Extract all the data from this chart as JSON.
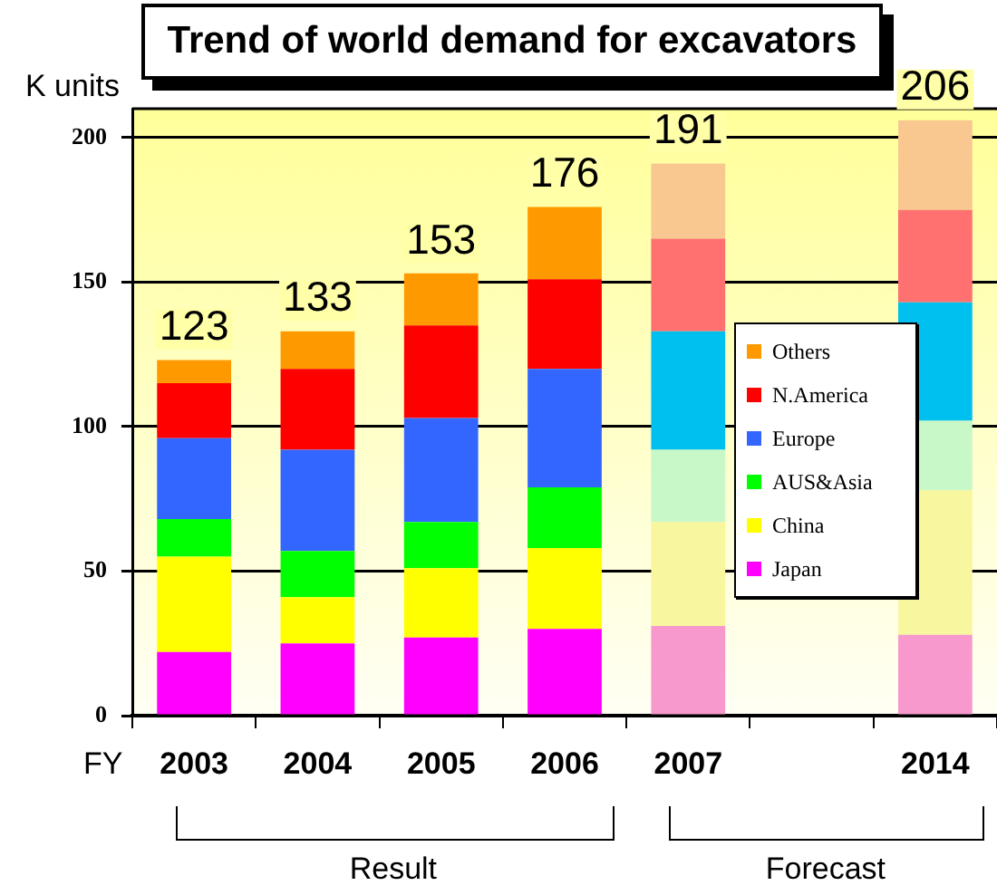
{
  "chart_data": {
    "type": "bar",
    "stacked": true,
    "title": "Trend of world demand for excavators",
    "ylabel": "K units",
    "xlabel": "FY",
    "categories": [
      "2003",
      "2004",
      "2005",
      "2006",
      "2007",
      null,
      "2014"
    ],
    "series": [
      {
        "name": "Japan",
        "color": "#ff00ff",
        "colors": [
          "#ff00ff",
          "#ff00ff",
          "#ff00ff",
          "#ff00ff",
          "#f799cc",
          "#f799cc",
          "#f799cc"
        ],
        "values": [
          22,
          25,
          27,
          30,
          31,
          null,
          28
        ]
      },
      {
        "name": "China",
        "color": "#ffff00",
        "colors": [
          "#ffff00",
          "#ffff00",
          "#ffff00",
          "#ffff00",
          "#f9f6a0",
          "#f9f6a0",
          "#f9f6a0"
        ],
        "values": [
          33,
          16,
          24,
          28,
          36,
          null,
          50
        ]
      },
      {
        "name": "AUS&Asia",
        "color": "#00ff00",
        "colors": [
          "#00ff00",
          "#00ff00",
          "#00ff00",
          "#00ff00",
          "#c8f7c8",
          "#c8f7c8",
          "#c8f7c8"
        ],
        "values": [
          13,
          16,
          16,
          21,
          25,
          null,
          24
        ]
      },
      {
        "name": "Europe",
        "color": "#3366ff",
        "colors": [
          "#3366ff",
          "#3366ff",
          "#3366ff",
          "#3366ff",
          "#00c0f0",
          "#00c0f0",
          "#00c0f0"
        ],
        "values": [
          28,
          35,
          36,
          41,
          41,
          null,
          41
        ]
      },
      {
        "name": "N.America",
        "color": "#ff0000",
        "colors": [
          "#ff0000",
          "#ff0000",
          "#ff0000",
          "#ff0000",
          "#ff7070",
          "#ff7070",
          "#ff7070"
        ],
        "values": [
          19,
          28,
          32,
          31,
          32,
          null,
          32
        ]
      },
      {
        "name": "Others",
        "color": "#ff9900",
        "colors": [
          "#ff9900",
          "#ff9900",
          "#ff9900",
          "#ff9900",
          "#f9c890",
          "#f9c890",
          "#f9c890"
        ],
        "values": [
          8,
          13,
          18,
          25,
          26,
          null,
          31
        ]
      }
    ],
    "totals": [
      "123",
      "133",
      "153",
      "176",
      "191",
      null,
      "206"
    ],
    "ylim": [
      0,
      210
    ],
    "yticks": [
      0,
      50,
      100,
      150,
      200
    ],
    "grid": "y",
    "legend": "right",
    "annotations": [
      "Result",
      "Forecast"
    ]
  }
}
